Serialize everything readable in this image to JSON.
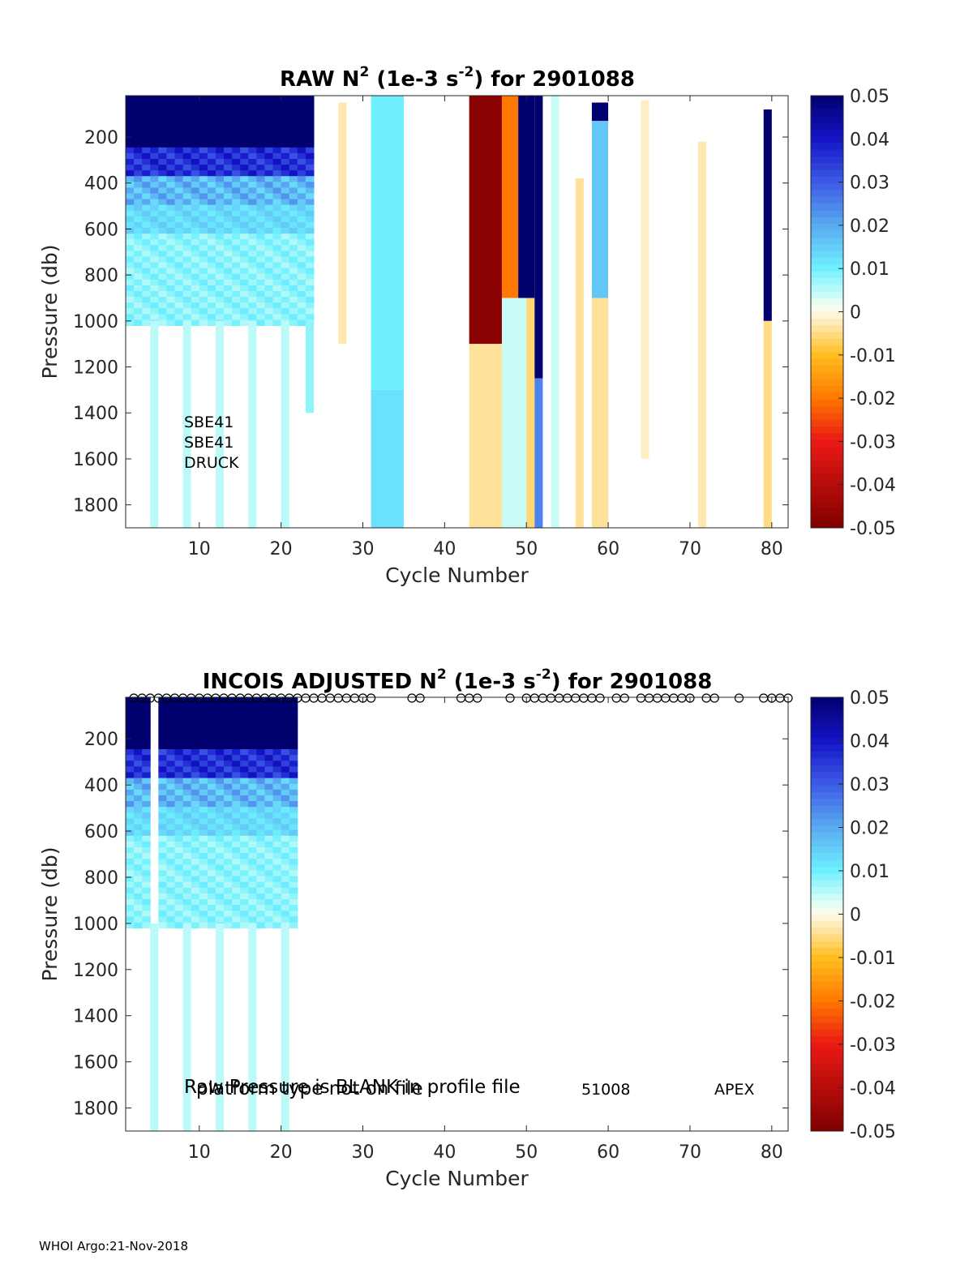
{
  "footer": "WHOI Argo:21-Nov-2018",
  "chart_data": [
    {
      "type": "heatmap",
      "title_parts": [
        "RAW N",
        "2",
        " (1e-3 s",
        "-2",
        ") for 2901088"
      ],
      "xlabel": "Cycle Number",
      "ylabel": "Pressure (db)",
      "xlim": [
        1,
        82
      ],
      "ylim": [
        1900,
        20
      ],
      "xticks": [
        10,
        20,
        30,
        40,
        50,
        60,
        70,
        80
      ],
      "yticks": [
        200,
        400,
        600,
        800,
        1000,
        1200,
        1400,
        1600,
        1800
      ],
      "colorbar": {
        "clim": [
          -0.05,
          0.05
        ],
        "ticks": [
          "0.05",
          "0.04",
          "0.03",
          "0.02",
          "0.01",
          "0",
          "-0.01",
          "-0.02",
          "-0.03",
          "-0.04",
          "-0.05"
        ]
      },
      "annotations": [
        "SBE41",
        "SBE41",
        "DRUCK"
      ],
      "dense": {
        "c0": 1,
        "c1": 24,
        "p1": 1000
      },
      "columns": [
        {
          "c": [
            4,
            5
          ],
          "p": [
            1000,
            1900
          ],
          "v": 0.005
        },
        {
          "c": [
            8,
            9
          ],
          "p": [
            1000,
            1900
          ],
          "v": 0.005
        },
        {
          "c": [
            12,
            13
          ],
          "p": [
            1000,
            1900
          ],
          "v": 0.005
        },
        {
          "c": [
            16,
            17
          ],
          "p": [
            1000,
            1900
          ],
          "v": 0.005
        },
        {
          "c": [
            20,
            21
          ],
          "p": [
            1000,
            1900
          ],
          "v": 0.005
        },
        {
          "c": [
            23,
            24
          ],
          "p": [
            1000,
            1400
          ],
          "v": 0.008
        },
        {
          "c": [
            27,
            28
          ],
          "p": [
            50,
            1100
          ],
          "v": -0.003
        },
        {
          "c": [
            31,
            35
          ],
          "p": [
            20,
            1300
          ],
          "v": 0.01
        },
        {
          "c": [
            31,
            35
          ],
          "p": [
            1300,
            1900
          ],
          "v": 0.012
        },
        {
          "c": [
            43,
            47
          ],
          "p": [
            20,
            1100
          ],
          "v": -0.048
        },
        {
          "c": [
            43,
            47
          ],
          "p": [
            1100,
            1900
          ],
          "v": -0.004
        },
        {
          "c": [
            47,
            49
          ],
          "p": [
            20,
            900
          ],
          "v": -0.02
        },
        {
          "c": [
            47,
            50
          ],
          "p": [
            900,
            1900
          ],
          "v": 0.004
        },
        {
          "c": [
            49,
            51
          ],
          "p": [
            20,
            900
          ],
          "v": 0.05
        },
        {
          "c": [
            50,
            51
          ],
          "p": [
            900,
            1900
          ],
          "v": -0.006
        },
        {
          "c": [
            51,
            52
          ],
          "p": [
            20,
            1250
          ],
          "v": 0.05
        },
        {
          "c": [
            51,
            52
          ],
          "p": [
            1250,
            1900
          ],
          "v": 0.025
        },
        {
          "c": [
            53,
            54
          ],
          "p": [
            20,
            1900
          ],
          "v": 0.004
        },
        {
          "c": [
            56,
            57
          ],
          "p": [
            380,
            1900
          ],
          "v": -0.004
        },
        {
          "c": [
            58,
            60
          ],
          "p": [
            50,
            130
          ],
          "v": 0.05
        },
        {
          "c": [
            58,
            60
          ],
          "p": [
            130,
            900
          ],
          "v": 0.016
        },
        {
          "c": [
            58,
            60
          ],
          "p": [
            900,
            1900
          ],
          "v": -0.004
        },
        {
          "c": [
            64,
            65
          ],
          "p": [
            40,
            1600
          ],
          "v": -0.002
        },
        {
          "c": [
            71,
            72
          ],
          "p": [
            220,
            1900
          ],
          "v": -0.003
        },
        {
          "c": [
            79,
            80
          ],
          "p": [
            80,
            1000
          ],
          "v": 0.05
        },
        {
          "c": [
            79,
            80
          ],
          "p": [
            1000,
            1900
          ],
          "v": -0.005
        }
      ]
    },
    {
      "type": "heatmap",
      "title_parts": [
        "INCOIS  ADJUSTED N",
        "2",
        " (1e-3 s",
        "-2",
        ") for 2901088"
      ],
      "xlabel": "Cycle Number",
      "ylabel": "Pressure (db)",
      "xlim": [
        1,
        82
      ],
      "ylim": [
        1900,
        20
      ],
      "xticks": [
        10,
        20,
        30,
        40,
        50,
        60,
        70,
        80
      ],
      "yticks": [
        200,
        400,
        600,
        800,
        1000,
        1200,
        1400,
        1600,
        1800
      ],
      "colorbar": {
        "clim": [
          -0.05,
          0.05
        ],
        "ticks": [
          "0.05",
          "0.04",
          "0.03",
          "0.02",
          "0.01",
          "0",
          "-0.01",
          "-0.02",
          "-0.03",
          "-0.04",
          "-0.05"
        ]
      },
      "annotations": [
        "Raw Pressure is BLANK in profile file",
        "platform type not on file",
        "51008",
        "APEX"
      ],
      "dense": {
        "c0": 1,
        "c1": 22,
        "p1": 1000,
        "gaps": [
          4,
          6
        ]
      },
      "columns": [
        {
          "c": [
            4,
            5
          ],
          "p": [
            1000,
            1900
          ],
          "v": 0.005
        },
        {
          "c": [
            8,
            9
          ],
          "p": [
            1000,
            1900
          ],
          "v": 0.005
        },
        {
          "c": [
            12,
            13
          ],
          "p": [
            1000,
            1900
          ],
          "v": 0.005
        },
        {
          "c": [
            16,
            17
          ],
          "p": [
            1000,
            1900
          ],
          "v": 0.005
        },
        {
          "c": [
            20,
            21
          ],
          "p": [
            1000,
            1900
          ],
          "v": 0.005
        }
      ],
      "cycle_markers": [
        2,
        3,
        4,
        5,
        6,
        7,
        8,
        9,
        10,
        11,
        12,
        13,
        14,
        15,
        16,
        17,
        18,
        19,
        20,
        21,
        22,
        23,
        24,
        25,
        26,
        27,
        28,
        29,
        30,
        31,
        36,
        37,
        42,
        43,
        44,
        48,
        50,
        51,
        52,
        53,
        54,
        55,
        56,
        57,
        58,
        59,
        61,
        62,
        64,
        65,
        66,
        67,
        68,
        69,
        70,
        72,
        73,
        76,
        79,
        80,
        81,
        82
      ]
    }
  ]
}
